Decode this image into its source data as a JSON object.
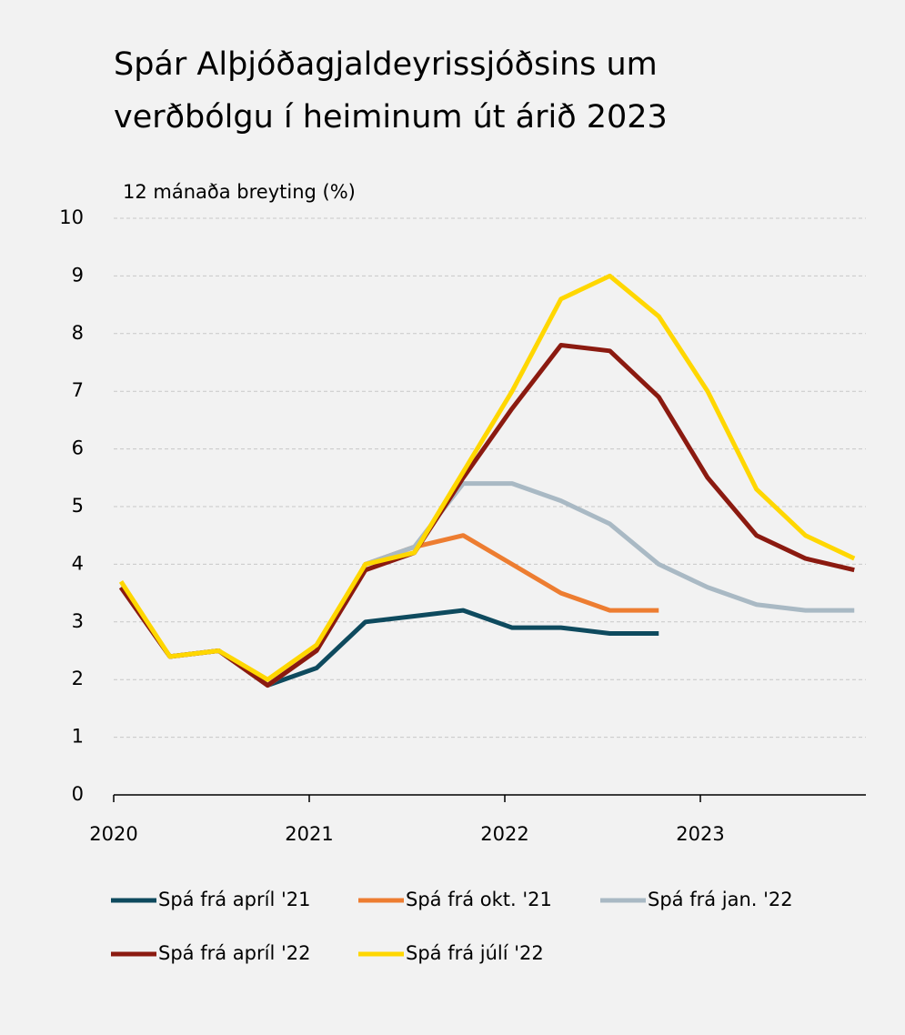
{
  "chart_data": {
    "type": "line",
    "title": [
      "Spár Alþjóðagjaldeyrissjóðsins um",
      "verðbólgu í heiminum út árið 2023"
    ],
    "y_label": "12 mánaða breyting (%)",
    "categories": [
      "2020",
      null,
      null,
      null,
      "2021",
      null,
      null,
      null,
      "2022",
      null,
      null,
      null,
      "2023",
      null,
      null,
      null
    ],
    "ylim": [
      0,
      10
    ],
    "yticks": [
      0,
      1,
      2,
      3,
      4,
      5,
      6,
      7,
      8,
      9,
      10
    ],
    "grid": true,
    "series": [
      {
        "name": "Spá frá apríl '21",
        "color": "#0e4a5e",
        "values": [
          3.6,
          2.4,
          2.5,
          1.9,
          2.2,
          3.0,
          3.1,
          3.2,
          2.9,
          2.9,
          2.8,
          2.8,
          null,
          null,
          null,
          null
        ]
      },
      {
        "name": "Spá frá okt. '21",
        "color": "#ed7d31",
        "values": [
          3.6,
          2.4,
          2.5,
          1.9,
          2.5,
          4.0,
          4.3,
          4.5,
          4.0,
          3.5,
          3.2,
          3.2,
          null,
          null,
          null,
          null
        ]
      },
      {
        "name": "Spá frá jan. '22",
        "color": "#a9b9c4",
        "values": [
          3.6,
          2.4,
          2.5,
          1.9,
          2.5,
          4.0,
          4.3,
          5.4,
          5.4,
          5.1,
          4.7,
          4.0,
          3.6,
          3.3,
          3.2,
          3.2
        ]
      },
      {
        "name": "Spá frá apríl '22",
        "color": "#8b1a10",
        "values": [
          3.6,
          2.4,
          2.5,
          1.9,
          2.5,
          3.9,
          4.2,
          5.5,
          6.7,
          7.8,
          7.7,
          6.9,
          5.5,
          4.5,
          4.1,
          3.9
        ]
      },
      {
        "name": "Spá frá júlí '22",
        "color": "#ffd700",
        "values": [
          3.7,
          2.4,
          2.5,
          2.0,
          2.6,
          4.0,
          4.2,
          5.6,
          7.0,
          8.6,
          9.0,
          8.3,
          7.0,
          5.3,
          4.5,
          4.1
        ]
      }
    ]
  }
}
